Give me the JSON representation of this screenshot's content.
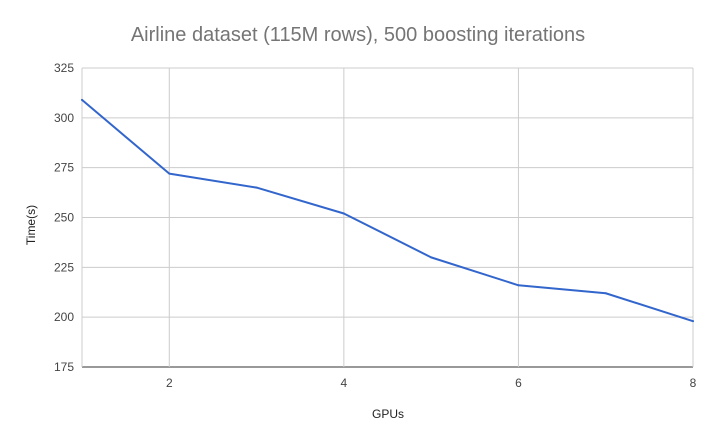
{
  "chart_data": {
    "type": "line",
    "title": "Airline dataset (115M rows),  500 boosting iterations",
    "xlabel": "GPUs",
    "ylabel": "Time(s)",
    "x": [
      1,
      2,
      3,
      4,
      5,
      6,
      7,
      8
    ],
    "series": [
      {
        "name": "",
        "values": [
          309,
          272,
          265,
          252,
          230,
          216,
          212,
          198
        ],
        "color": "#3366cc"
      }
    ],
    "xlim": [
      1,
      8
    ],
    "ylim": [
      175,
      325
    ],
    "xticks": [
      2,
      4,
      6,
      8
    ],
    "yticks": [
      175,
      200,
      225,
      250,
      275,
      300,
      325
    ],
    "grid": true,
    "legend": "none"
  }
}
